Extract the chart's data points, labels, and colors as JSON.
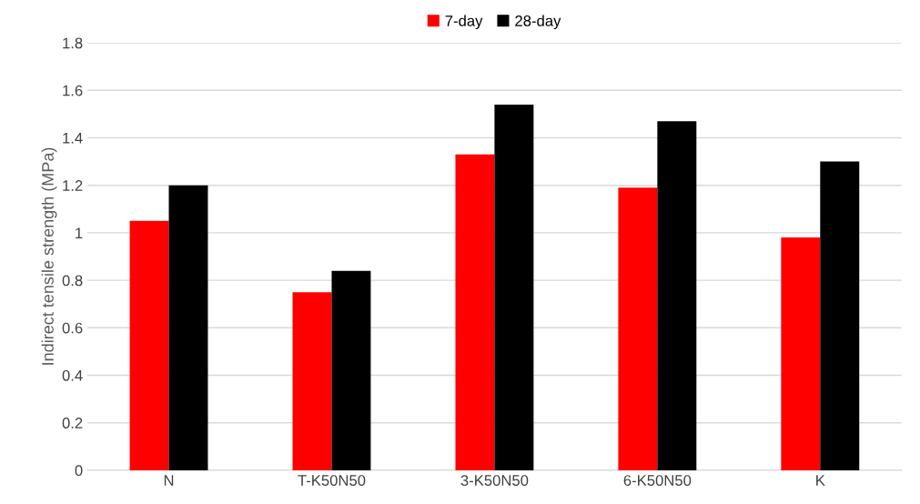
{
  "chart_data": {
    "type": "bar",
    "ylabel": "Indirect tensile strength (MPa)",
    "categories": [
      "N",
      "T-K50N50",
      "3-K50N50",
      "6-K50N50",
      "K"
    ],
    "series": [
      {
        "name": "7-day",
        "color": "#ff0000",
        "values": [
          1.05,
          0.75,
          1.33,
          1.19,
          0.98
        ]
      },
      {
        "name": "28-day",
        "color": "#000000",
        "values": [
          1.2,
          0.84,
          1.54,
          1.47,
          1.3
        ]
      }
    ],
    "ylim": [
      0,
      1.8
    ],
    "yticks": [
      0,
      0.2,
      0.4,
      0.6,
      0.8,
      {
        "value": 1,
        "label": "1"
      },
      1.2,
      1.4,
      1.6,
      1.8
    ],
    "grid": "y",
    "legend": "top"
  }
}
